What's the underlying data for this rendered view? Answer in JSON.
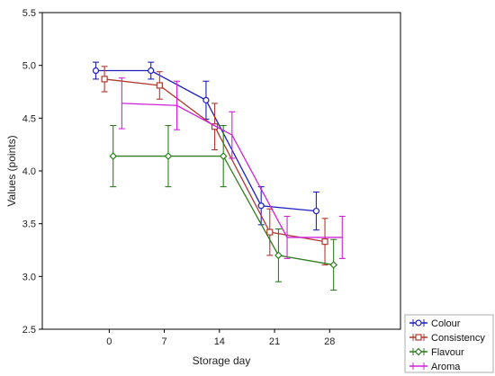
{
  "chart_data": {
    "type": "line",
    "xlabel": "Storage day",
    "ylabel": "Values (points)",
    "x_ticks": [
      "0",
      "7",
      "14",
      "21",
      "28"
    ],
    "y_ticks": [
      "2.5",
      "3.0",
      "3.5",
      "4.0",
      "4.5",
      "5.0",
      "5.5"
    ],
    "xlim": [
      -8.5,
      37
    ],
    "ylim": [
      2.5,
      5.5
    ],
    "grid": false,
    "legend_position": "bottom-right",
    "series": [
      {
        "name": "Colour",
        "color": "#1f1fbf",
        "marker": "circle",
        "x": [
          -1.7,
          5.3,
          12.3,
          19.3,
          26.3
        ],
        "y": [
          4.95,
          4.95,
          4.67,
          3.67,
          3.62
        ],
        "err": [
          0.08,
          0.08,
          0.18,
          0.18,
          0.18
        ]
      },
      {
        "name": "Consistency",
        "color": "#b03a2e",
        "marker": "square",
        "x": [
          -0.6,
          6.4,
          13.4,
          20.4,
          27.4
        ],
        "y": [
          4.87,
          4.81,
          4.42,
          3.42,
          3.33
        ],
        "err": [
          0.12,
          0.13,
          0.22,
          0.22,
          0.22
        ]
      },
      {
        "name": "Flavour",
        "color": "#2e7d1e",
        "marker": "diamond",
        "x": [
          0.5,
          7.5,
          14.5,
          21.5,
          28.5
        ],
        "y": [
          4.14,
          4.14,
          4.14,
          3.2,
          3.11
        ],
        "err": [
          0.29,
          0.29,
          0.29,
          0.25,
          0.24
        ]
      },
      {
        "name": "Aroma",
        "color": "#d020d8",
        "marker": "none",
        "x": [
          1.6,
          8.6,
          15.6,
          22.6,
          29.6
        ],
        "y": [
          4.64,
          4.62,
          4.34,
          3.37,
          3.37
        ],
        "err": [
          0.24,
          0.23,
          0.22,
          0.2,
          0.2
        ]
      }
    ]
  }
}
